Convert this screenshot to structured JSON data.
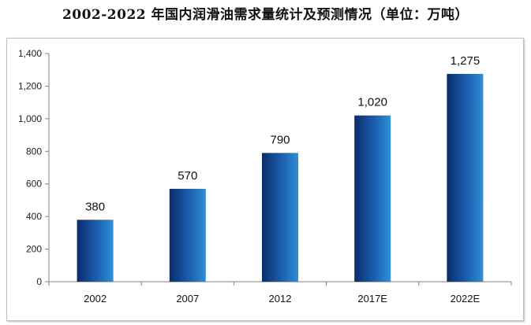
{
  "chart_data": {
    "type": "bar",
    "title": "2002-2022 年国内润滑油需求量统计及预测情况（单位：万吨）",
    "categories": [
      "2002",
      "2007",
      "2012",
      "2017E",
      "2022E"
    ],
    "values": [
      380,
      570,
      790,
      1020,
      1275
    ],
    "value_labels": [
      "380",
      "570",
      "790",
      "1,020",
      "1,275"
    ],
    "xlabel": "",
    "ylabel": "",
    "ylim": [
      0,
      1400
    ],
    "yticks": [
      0,
      200,
      400,
      600,
      800,
      1000,
      1200,
      1400
    ],
    "ytick_labels": [
      "0",
      "200",
      "400",
      "600",
      "800",
      "1,000",
      "1,200",
      "1,400"
    ],
    "grid": false,
    "legend": "none",
    "colors": {
      "bar_dark": "#0b2d6b",
      "bar_light": "#2f8fd6",
      "axis": "#808080"
    }
  }
}
